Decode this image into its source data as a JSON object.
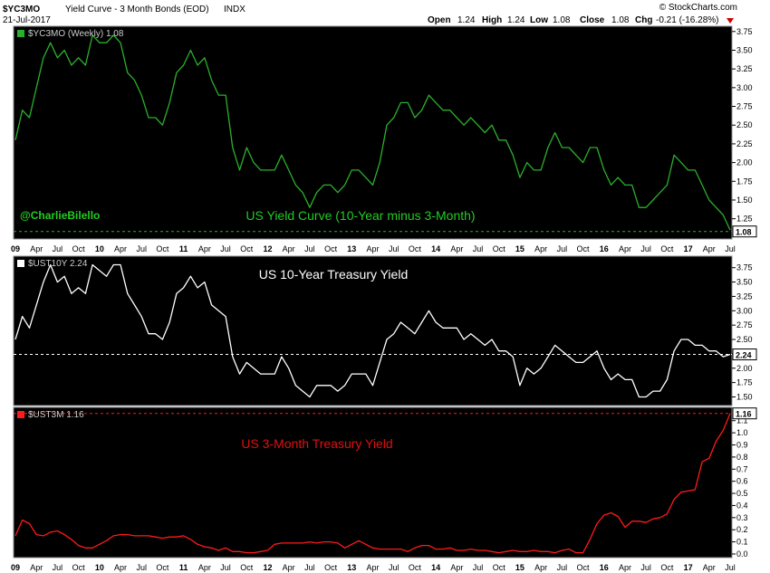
{
  "header": {
    "symbol": "$YC3MO",
    "name": "Yield Curve - 3 Month Bonds (EOD)",
    "exchange": "INDX",
    "date": "21-Jul-2017",
    "watermark": "© StockCharts.com",
    "open_label": "Open",
    "open": "1.24",
    "high_label": "High",
    "high": "1.24",
    "low_label": "Low",
    "low": "1.08",
    "close_label": "Close",
    "close": "1.08",
    "chg_label": "Chg",
    "chg": "-0.21 (-16.28%)"
  },
  "x_axis": {
    "labels": [
      {
        "t": "09",
        "year": true
      },
      {
        "t": "Apr"
      },
      {
        "t": "Jul"
      },
      {
        "t": "Oct"
      },
      {
        "t": "10",
        "year": true
      },
      {
        "t": "Apr"
      },
      {
        "t": "Jul"
      },
      {
        "t": "Oct"
      },
      {
        "t": "11",
        "year": true
      },
      {
        "t": "Apr"
      },
      {
        "t": "Jul"
      },
      {
        "t": "Oct"
      },
      {
        "t": "12",
        "year": true
      },
      {
        "t": "Apr"
      },
      {
        "t": "Jul"
      },
      {
        "t": "Oct"
      },
      {
        "t": "13",
        "year": true
      },
      {
        "t": "Apr"
      },
      {
        "t": "Jul"
      },
      {
        "t": "Oct"
      },
      {
        "t": "14",
        "year": true
      },
      {
        "t": "Apr"
      },
      {
        "t": "Jul"
      },
      {
        "t": "Oct"
      },
      {
        "t": "15",
        "year": true
      },
      {
        "t": "Apr"
      },
      {
        "t": "Jul"
      },
      {
        "t": "Oct"
      },
      {
        "t": "16",
        "year": true
      },
      {
        "t": "Apr"
      },
      {
        "t": "Jul"
      },
      {
        "t": "Oct"
      },
      {
        "t": "17",
        "year": true
      },
      {
        "t": "Apr"
      },
      {
        "t": "Jul"
      }
    ]
  },
  "chart_data": [
    {
      "type": "line",
      "panel_label": "$YC3MO (Weekly) 1.08",
      "title": "US Yield Curve (10-Year minus 3-Month)",
      "annotation": "@CharlieBilello",
      "color": "#2bb02b",
      "title_color": "#22cc22",
      "x": [
        "2009-01",
        "2009-02",
        "2009-03",
        "2009-04",
        "2009-05",
        "2009-06",
        "2009-07",
        "2009-08",
        "2009-09",
        "2009-10",
        "2009-11",
        "2009-12",
        "2010-01",
        "2010-02",
        "2010-03",
        "2010-04",
        "2010-05",
        "2010-06",
        "2010-07",
        "2010-08",
        "2010-09",
        "2010-10",
        "2010-11",
        "2010-12",
        "2011-01",
        "2011-02",
        "2011-03",
        "2011-04",
        "2011-05",
        "2011-06",
        "2011-07",
        "2011-08",
        "2011-09",
        "2011-10",
        "2011-11",
        "2011-12",
        "2012-01",
        "2012-02",
        "2012-03",
        "2012-04",
        "2012-05",
        "2012-06",
        "2012-07",
        "2012-08",
        "2012-09",
        "2012-10",
        "2012-11",
        "2012-12",
        "2013-01",
        "2013-02",
        "2013-03",
        "2013-04",
        "2013-05",
        "2013-06",
        "2013-07",
        "2013-08",
        "2013-09",
        "2013-10",
        "2013-11",
        "2013-12",
        "2014-01",
        "2014-02",
        "2014-03",
        "2014-04",
        "2014-05",
        "2014-06",
        "2014-07",
        "2014-08",
        "2014-09",
        "2014-10",
        "2014-11",
        "2014-12",
        "2015-01",
        "2015-02",
        "2015-03",
        "2015-04",
        "2015-05",
        "2015-06",
        "2015-07",
        "2015-08",
        "2015-09",
        "2015-10",
        "2015-11",
        "2015-12",
        "2016-01",
        "2016-02",
        "2016-03",
        "2016-04",
        "2016-05",
        "2016-06",
        "2016-07",
        "2016-08",
        "2016-09",
        "2016-10",
        "2016-11",
        "2016-12",
        "2017-01",
        "2017-02",
        "2017-03",
        "2017-04",
        "2017-05",
        "2017-06",
        "2017-07"
      ],
      "values": [
        2.3,
        2.7,
        2.6,
        3.0,
        3.4,
        3.6,
        3.4,
        3.5,
        3.3,
        3.4,
        3.3,
        3.7,
        3.6,
        3.6,
        3.7,
        3.6,
        3.2,
        3.1,
        2.9,
        2.6,
        2.6,
        2.5,
        2.8,
        3.2,
        3.3,
        3.5,
        3.3,
        3.4,
        3.1,
        2.9,
        2.9,
        2.2,
        1.9,
        2.2,
        2.0,
        1.9,
        1.9,
        1.9,
        2.1,
        1.9,
        1.7,
        1.6,
        1.4,
        1.6,
        1.7,
        1.7,
        1.6,
        1.7,
        1.9,
        1.9,
        1.8,
        1.7,
        2.0,
        2.5,
        2.6,
        2.8,
        2.8,
        2.6,
        2.7,
        2.9,
        2.8,
        2.7,
        2.7,
        2.6,
        2.5,
        2.6,
        2.5,
        2.4,
        2.5,
        2.3,
        2.3,
        2.1,
        1.8,
        2.0,
        1.9,
        1.9,
        2.2,
        2.4,
        2.2,
        2.2,
        2.1,
        2.0,
        2.2,
        2.2,
        1.9,
        1.7,
        1.8,
        1.7,
        1.7,
        1.4,
        1.4,
        1.5,
        1.6,
        1.7,
        2.1,
        2.0,
        1.9,
        1.9,
        1.7,
        1.5,
        1.4,
        1.3,
        1.1
      ],
      "ylim": [
        0.98,
        3.82
      ],
      "yticks": [
        1.25,
        1.5,
        1.75,
        2.0,
        2.25,
        2.5,
        2.75,
        3.0,
        3.25,
        3.5,
        3.75
      ],
      "ytick_labels": [
        "1.25",
        "1.50",
        "1.75",
        "2.00",
        "2.25",
        "2.50",
        "2.75",
        "3.00",
        "3.25",
        "3.50",
        "3.75"
      ],
      "last_value": "1.08",
      "grid": false
    },
    {
      "type": "line",
      "panel_label": "$UST10Y 2.24",
      "title": "US 10-Year Treasury Yield",
      "color": "#ffffff",
      "title_color": "#ffffff",
      "x": [
        "2009-01",
        "2009-02",
        "2009-03",
        "2009-04",
        "2009-05",
        "2009-06",
        "2009-07",
        "2009-08",
        "2009-09",
        "2009-10",
        "2009-11",
        "2009-12",
        "2010-01",
        "2010-02",
        "2010-03",
        "2010-04",
        "2010-05",
        "2010-06",
        "2010-07",
        "2010-08",
        "2010-09",
        "2010-10",
        "2010-11",
        "2010-12",
        "2011-01",
        "2011-02",
        "2011-03",
        "2011-04",
        "2011-05",
        "2011-06",
        "2011-07",
        "2011-08",
        "2011-09",
        "2011-10",
        "2011-11",
        "2011-12",
        "2012-01",
        "2012-02",
        "2012-03",
        "2012-04",
        "2012-05",
        "2012-06",
        "2012-07",
        "2012-08",
        "2012-09",
        "2012-10",
        "2012-11",
        "2012-12",
        "2013-01",
        "2013-02",
        "2013-03",
        "2013-04",
        "2013-05",
        "2013-06",
        "2013-07",
        "2013-08",
        "2013-09",
        "2013-10",
        "2013-11",
        "2013-12",
        "2014-01",
        "2014-02",
        "2014-03",
        "2014-04",
        "2014-05",
        "2014-06",
        "2014-07",
        "2014-08",
        "2014-09",
        "2014-10",
        "2014-11",
        "2014-12",
        "2015-01",
        "2015-02",
        "2015-03",
        "2015-04",
        "2015-05",
        "2015-06",
        "2015-07",
        "2015-08",
        "2015-09",
        "2015-10",
        "2015-11",
        "2015-12",
        "2016-01",
        "2016-02",
        "2016-03",
        "2016-04",
        "2016-05",
        "2016-06",
        "2016-07",
        "2016-08",
        "2016-09",
        "2016-10",
        "2016-11",
        "2016-12",
        "2017-01",
        "2017-02",
        "2017-03",
        "2017-04",
        "2017-05",
        "2017-06",
        "2017-07"
      ],
      "values": [
        2.5,
        2.9,
        2.7,
        3.1,
        3.5,
        3.8,
        3.5,
        3.6,
        3.3,
        3.4,
        3.3,
        3.8,
        3.7,
        3.6,
        3.8,
        3.8,
        3.3,
        3.1,
        2.9,
        2.6,
        2.6,
        2.5,
        2.8,
        3.3,
        3.4,
        3.6,
        3.4,
        3.5,
        3.1,
        3.0,
        2.9,
        2.2,
        1.9,
        2.1,
        2.0,
        1.9,
        1.9,
        1.9,
        2.2,
        2.0,
        1.7,
        1.6,
        1.5,
        1.7,
        1.7,
        1.7,
        1.6,
        1.7,
        1.9,
        1.9,
        1.9,
        1.7,
        2.1,
        2.5,
        2.6,
        2.8,
        2.7,
        2.6,
        2.8,
        3.0,
        2.8,
        2.7,
        2.7,
        2.7,
        2.5,
        2.6,
        2.5,
        2.4,
        2.5,
        2.3,
        2.3,
        2.2,
        1.7,
        2.0,
        1.9,
        2.0,
        2.2,
        2.4,
        2.3,
        2.2,
        2.1,
        2.1,
        2.2,
        2.3,
        2.0,
        1.8,
        1.9,
        1.8,
        1.8,
        1.5,
        1.5,
        1.6,
        1.6,
        1.8,
        2.3,
        2.5,
        2.5,
        2.4,
        2.4,
        2.3,
        2.3,
        2.2,
        2.24
      ],
      "ylim": [
        1.35,
        3.95
      ],
      "yticks": [
        1.5,
        1.75,
        2.0,
        2.25,
        2.5,
        2.75,
        3.0,
        3.25,
        3.5,
        3.75
      ],
      "ytick_labels": [
        "1.50",
        "1.75",
        "2.00",
        "2.25",
        "2.50",
        "2.75",
        "3.00",
        "3.25",
        "3.50",
        "3.75"
      ],
      "last_value": "2.24",
      "grid": false
    },
    {
      "type": "line",
      "panel_label": "$UST3M 1.16",
      "title": "US 3-Month Treasury Yield",
      "color": "#ff1a1a",
      "title_color": "#e01010",
      "x": [
        "2009-01",
        "2009-02",
        "2009-03",
        "2009-04",
        "2009-05",
        "2009-06",
        "2009-07",
        "2009-08",
        "2009-09",
        "2009-10",
        "2009-11",
        "2009-12",
        "2010-01",
        "2010-02",
        "2010-03",
        "2010-04",
        "2010-05",
        "2010-06",
        "2010-07",
        "2010-08",
        "2010-09",
        "2010-10",
        "2010-11",
        "2010-12",
        "2011-01",
        "2011-02",
        "2011-03",
        "2011-04",
        "2011-05",
        "2011-06",
        "2011-07",
        "2011-08",
        "2011-09",
        "2011-10",
        "2011-11",
        "2011-12",
        "2012-01",
        "2012-02",
        "2012-03",
        "2012-04",
        "2012-05",
        "2012-06",
        "2012-07",
        "2012-08",
        "2012-09",
        "2012-10",
        "2012-11",
        "2012-12",
        "2013-01",
        "2013-02",
        "2013-03",
        "2013-04",
        "2013-05",
        "2013-06",
        "2013-07",
        "2013-08",
        "2013-09",
        "2013-10",
        "2013-11",
        "2013-12",
        "2014-01",
        "2014-02",
        "2014-03",
        "2014-04",
        "2014-05",
        "2014-06",
        "2014-07",
        "2014-08",
        "2014-09",
        "2014-10",
        "2014-11",
        "2014-12",
        "2015-01",
        "2015-02",
        "2015-03",
        "2015-04",
        "2015-05",
        "2015-06",
        "2015-07",
        "2015-08",
        "2015-09",
        "2015-10",
        "2015-11",
        "2015-12",
        "2016-01",
        "2016-02",
        "2016-03",
        "2016-04",
        "2016-05",
        "2016-06",
        "2016-07",
        "2016-08",
        "2016-09",
        "2016-10",
        "2016-11",
        "2016-12",
        "2017-01",
        "2017-02",
        "2017-03",
        "2017-04",
        "2017-05",
        "2017-06",
        "2017-07"
      ],
      "values": [
        0.15,
        0.28,
        0.25,
        0.16,
        0.15,
        0.18,
        0.19,
        0.16,
        0.12,
        0.07,
        0.05,
        0.05,
        0.08,
        0.11,
        0.15,
        0.16,
        0.16,
        0.15,
        0.15,
        0.15,
        0.14,
        0.13,
        0.14,
        0.14,
        0.15,
        0.12,
        0.08,
        0.06,
        0.05,
        0.03,
        0.05,
        0.02,
        0.02,
        0.01,
        0.01,
        0.02,
        0.03,
        0.08,
        0.09,
        0.09,
        0.09,
        0.09,
        0.1,
        0.09,
        0.1,
        0.1,
        0.09,
        0.05,
        0.08,
        0.11,
        0.08,
        0.05,
        0.04,
        0.04,
        0.04,
        0.04,
        0.02,
        0.05,
        0.07,
        0.07,
        0.04,
        0.04,
        0.05,
        0.03,
        0.03,
        0.04,
        0.03,
        0.03,
        0.02,
        0.01,
        0.02,
        0.03,
        0.02,
        0.02,
        0.03,
        0.02,
        0.02,
        0.01,
        0.03,
        0.04,
        0.01,
        0.01,
        0.12,
        0.25,
        0.32,
        0.34,
        0.31,
        0.22,
        0.27,
        0.27,
        0.26,
        0.29,
        0.3,
        0.33,
        0.45,
        0.51,
        0.52,
        0.53,
        0.76,
        0.79,
        0.93,
        1.02,
        1.16
      ],
      "ylim": [
        -0.03,
        1.21
      ],
      "yticks": [
        0.0,
        0.1,
        0.2,
        0.3,
        0.4,
        0.5,
        0.6,
        0.7,
        0.8,
        0.9,
        1.0,
        1.1
      ],
      "ytick_labels": [
        "0.0",
        "0.1",
        "0.2",
        "0.3",
        "0.4",
        "0.5",
        "0.6",
        "0.7",
        "0.8",
        "0.9",
        "1.0",
        "1.1"
      ],
      "last_value": "1.16",
      "grid": false
    }
  ]
}
